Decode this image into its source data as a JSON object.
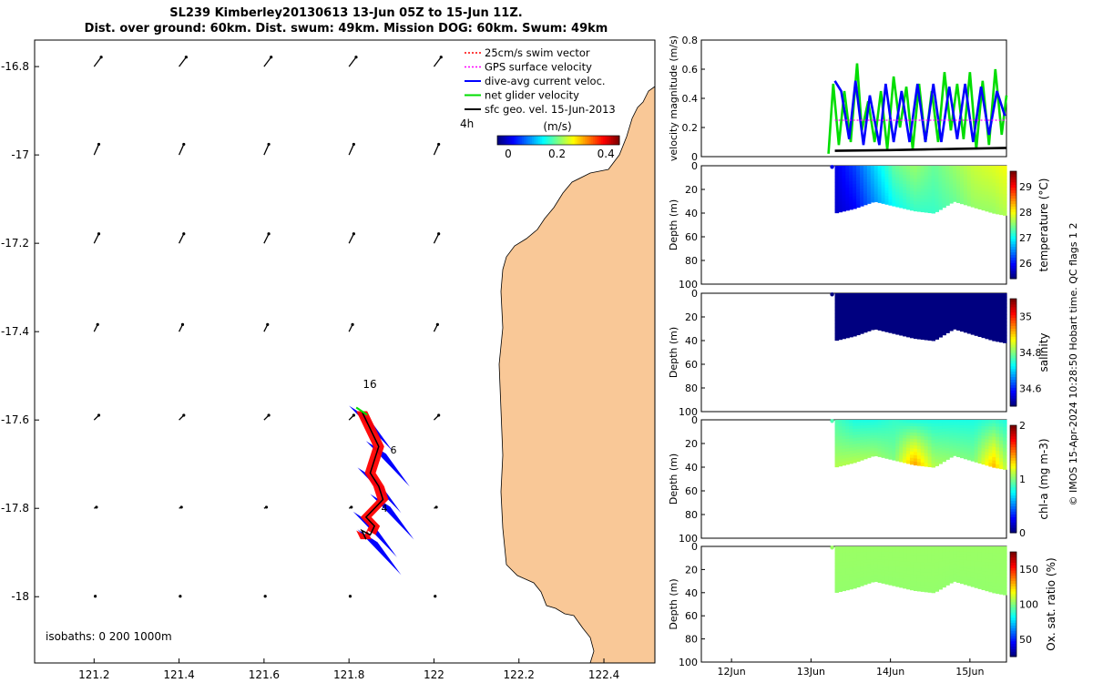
{
  "title": {
    "line1": "SL239 Kimberley20130613 13-Jun 05Z to 15-Jun 11Z.",
    "line2": "Dist. over ground: 60km. Dist. swum: 49km. Mission DOG: 60km. Swum: 49km"
  },
  "side_label": "© IMOS 15-Apr-2024 10:28:50 Hobart time. QC flags 1  2",
  "colors": {
    "land": "#f9c897",
    "swim": "#ff0000",
    "gps": "#ff00ff",
    "dive_avg": "#0000ff",
    "net": "#00dd00",
    "sfc": "#000000"
  },
  "chart_data": [
    {
      "type": "scatter",
      "panel": "track-map",
      "x": {
        "ticks": [
          121.2,
          121.4,
          121.6,
          121.8,
          122,
          122.2,
          122.4
        ],
        "tick_labels": [
          "121.2",
          "121.4",
          "121.6",
          "121.8",
          "122",
          "122.2",
          "122.4"
        ],
        "range": [
          121.06,
          122.52
        ]
      },
      "y": {
        "ticks": [
          -16.8,
          -17,
          -17.2,
          -17.4,
          -17.6,
          -17.8,
          -18
        ],
        "tick_labels": [
          "-16.8",
          "-17",
          "-17.2",
          "-17.4",
          "-17.6",
          "-17.8",
          "-18"
        ],
        "range": [
          -18.15,
          -16.74
        ]
      },
      "legend": {
        "placement": "top-right",
        "entries": [
          {
            "label": "25cm/s swim vector",
            "color": "#ff0000",
            "style": "dotted"
          },
          {
            "label": "GPS surface velocity",
            "color": "#ff00ff",
            "style": "dotted"
          },
          {
            "label": "dive-avg current veloc.",
            "color": "#0000ff",
            "style": "solid"
          },
          {
            "label": "net glider velocity",
            "color": "#00dd00",
            "style": "solid"
          },
          {
            "label": "sfc geo. vel. 15-Jun-2013",
            "color": "#000000",
            "style": "solid"
          }
        ]
      },
      "colorbar": {
        "label": "(m/s)",
        "ticks": [
          0,
          0.2,
          0.4
        ],
        "tick_labels": [
          "0",
          "0.2",
          "0.4"
        ],
        "range": [
          0,
          0.5
        ]
      },
      "annotations": [
        "16",
        "4h",
        "6",
        "4"
      ],
      "isobaths_note": "isobaths: 0   200  1000m",
      "sfc_vectors": {
        "lon": [
          121.2,
          121.4,
          121.6,
          121.8,
          122
        ],
        "lat": [
          -16.8,
          -17,
          -17.2,
          -17.4,
          -17.6,
          -17.8,
          -18
        ],
        "u_ms": [
          0.03,
          0.02,
          0.02,
          0.015,
          0.02,
          0.01,
          0.005
        ],
        "v_ms": [
          0.04,
          0.045,
          0.04,
          0.03,
          0.02,
          0.005,
          0.002
        ]
      },
      "track": {
        "lon": [
          121.83,
          121.85,
          121.87,
          121.86,
          121.85,
          121.87,
          121.88,
          121.86,
          121.84,
          121.86,
          121.85,
          121.83,
          121.84
        ],
        "lat": [
          -17.58,
          -17.62,
          -17.66,
          -17.69,
          -17.72,
          -17.75,
          -17.78,
          -17.8,
          -17.82,
          -17.84,
          -17.86,
          -17.85,
          -17.87
        ]
      }
    },
    {
      "type": "line",
      "panel": "velocity",
      "ylabel": "velocity magnitude (m/s)",
      "ylim": [
        0,
        0.8
      ],
      "y_ticks": [
        0,
        0.2,
        0.4,
        0.6,
        0.8
      ],
      "y_tick_labels": [
        "0",
        "0.2",
        "0.4",
        "0.6",
        "0.8"
      ],
      "series": [
        {
          "color": "#00dd00",
          "x": [
            13.22,
            13.28,
            13.35,
            13.42,
            13.5,
            13.58,
            13.64,
            13.72,
            13.8,
            13.88,
            13.96,
            14.04,
            14.12,
            14.2,
            14.28,
            14.36,
            14.44,
            14.52,
            14.6,
            14.68,
            14.76,
            14.84,
            14.92,
            15.0,
            15.08,
            15.16,
            15.24,
            15.32,
            15.4,
            15.46
          ],
          "y": [
            0.02,
            0.5,
            0.08,
            0.45,
            0.1,
            0.64,
            0.18,
            0.38,
            0.1,
            0.45,
            0.05,
            0.55,
            0.2,
            0.48,
            0.05,
            0.5,
            0.1,
            0.45,
            0.1,
            0.58,
            0.18,
            0.5,
            0.12,
            0.58,
            0.05,
            0.52,
            0.08,
            0.6,
            0.15,
            0.42
          ]
        },
        {
          "color": "#0000ff",
          "x": [
            13.3,
            13.38,
            13.48,
            13.56,
            13.66,
            13.74,
            13.86,
            13.94,
            14.04,
            14.14,
            14.24,
            14.34,
            14.44,
            14.54,
            14.64,
            14.74,
            14.84,
            14.94,
            15.04,
            15.14,
            15.24,
            15.34,
            15.44
          ],
          "y": [
            0.52,
            0.45,
            0.12,
            0.52,
            0.08,
            0.42,
            0.08,
            0.5,
            0.1,
            0.45,
            0.1,
            0.5,
            0.1,
            0.5,
            0.1,
            0.48,
            0.12,
            0.5,
            0.1,
            0.48,
            0.15,
            0.45,
            0.28
          ]
        },
        {
          "color": "#ff00ff",
          "x": [
            13.3,
            15.46
          ],
          "y": [
            0.25,
            0.25
          ]
        },
        {
          "color": "#000000",
          "x": [
            13.3,
            14.0,
            14.5,
            15.0,
            15.46
          ],
          "y": [
            0.04,
            0.045,
            0.05,
            0.055,
            0.06
          ]
        }
      ]
    },
    {
      "type": "heatmap",
      "panel": "temperature",
      "ylabel": "Depth (m)",
      "clabel": "temperature (°C)",
      "ylim": [
        100,
        0
      ],
      "y_ticks": [
        0,
        20,
        40,
        60,
        80,
        100
      ],
      "y_tick_labels": [
        "0",
        "20",
        "40",
        "60",
        "80",
        "100"
      ],
      "c_ticks": [
        26,
        27,
        28,
        29
      ],
      "c_tick_labels": [
        "26",
        "27",
        "28",
        "29"
      ],
      "c_range": [
        25.4,
        29.6
      ],
      "colormap": "jet",
      "x": [
        13.3,
        13.55,
        13.8,
        14.05,
        14.3,
        14.55,
        14.8,
        15.05,
        15.3,
        15.46
      ],
      "bottom_depth": [
        40,
        36,
        30,
        34,
        38,
        40,
        30,
        35,
        40,
        42
      ],
      "surface_value": [
        25.8,
        26.2,
        26.8,
        27.4,
        27.6,
        27.4,
        27.6,
        27.8,
        27.9,
        28.0
      ],
      "bottom_value": [
        25.7,
        25.9,
        26.5,
        27.0,
        27.2,
        27.2,
        27.4,
        27.6,
        27.6,
        27.7
      ]
    },
    {
      "type": "heatmap",
      "panel": "salinity",
      "ylabel": "Depth (m)",
      "clabel": "salinity",
      "ylim": [
        100,
        0
      ],
      "y_ticks": [
        0,
        20,
        40,
        60,
        80,
        100
      ],
      "y_tick_labels": [
        "0",
        "20",
        "40",
        "60",
        "80",
        "100"
      ],
      "c_ticks": [
        34.6,
        34.8,
        35
      ],
      "c_tick_labels": [
        "34.6",
        "34.8",
        "35"
      ],
      "c_range": [
        34.5,
        35.1
      ],
      "colormap": "jet",
      "x": [
        13.3,
        13.55,
        13.8,
        14.05,
        14.3,
        14.55,
        14.8,
        15.05,
        15.3,
        15.46
      ],
      "bottom_depth": [
        40,
        36,
        30,
        34,
        38,
        40,
        30,
        35,
        40,
        42
      ],
      "surface_value": [
        34.5,
        34.5,
        34.5,
        34.5,
        34.5,
        34.5,
        34.5,
        34.5,
        34.5,
        34.5
      ],
      "bottom_value": [
        34.5,
        34.5,
        34.5,
        34.5,
        34.5,
        34.5,
        34.5,
        34.5,
        34.5,
        34.5
      ]
    },
    {
      "type": "heatmap",
      "panel": "chlorophyll",
      "ylabel": "Depth (m)",
      "clabel": "chl-a (mg m-3)",
      "ylim": [
        100,
        0
      ],
      "y_ticks": [
        0,
        20,
        40,
        60,
        80,
        100
      ],
      "y_tick_labels": [
        "0",
        "20",
        "40",
        "60",
        "80",
        "100"
      ],
      "c_ticks": [
        0,
        1,
        2
      ],
      "c_tick_labels": [
        "0",
        "1",
        "2"
      ],
      "c_range": [
        0,
        2
      ],
      "colormap": "jet",
      "x": [
        13.3,
        13.55,
        13.8,
        14.05,
        14.3,
        14.55,
        14.8,
        15.05,
        15.3,
        15.46
      ],
      "bottom_depth": [
        40,
        36,
        30,
        34,
        38,
        40,
        30,
        35,
        40,
        42
      ],
      "surface_value": [
        0.9,
        0.8,
        0.8,
        0.85,
        0.8,
        0.8,
        0.8,
        0.8,
        0.85,
        0.8
      ],
      "bottom_value": [
        1.1,
        1.1,
        1.05,
        1.0,
        1.45,
        1.1,
        1.0,
        1.0,
        1.4,
        1.1
      ]
    },
    {
      "type": "heatmap",
      "panel": "oxygen",
      "ylabel": "Depth (m)",
      "clabel": "Ox. sat. ratio (%)",
      "ylim": [
        100,
        0
      ],
      "y_ticks": [
        0,
        20,
        40,
        60,
        80,
        100
      ],
      "y_tick_labels": [
        "0",
        "20",
        "40",
        "60",
        "80",
        "100"
      ],
      "c_ticks": [
        50,
        100,
        150
      ],
      "c_tick_labels": [
        "50",
        "100",
        "150"
      ],
      "c_range": [
        25,
        175
      ],
      "colormap": "jet",
      "x": [
        13.3,
        13.55,
        13.8,
        14.05,
        14.3,
        14.55,
        14.8,
        15.05,
        15.3,
        15.46
      ],
      "bottom_depth": [
        40,
        36,
        30,
        34,
        38,
        40,
        30,
        35,
        40,
        42
      ],
      "surface_value": [
        104,
        104,
        104,
        104,
        104,
        104,
        104,
        104,
        104,
        104
      ],
      "bottom_value": [
        103,
        103,
        103,
        103,
        103,
        103,
        103,
        103,
        103,
        103
      ],
      "x_ticks": [
        12,
        13,
        14,
        15
      ],
      "x_tick_labels": [
        "12Jun",
        "13Jun",
        "14Jun",
        "15Jun"
      ],
      "xlim": [
        11.62,
        15.46
      ]
    }
  ]
}
